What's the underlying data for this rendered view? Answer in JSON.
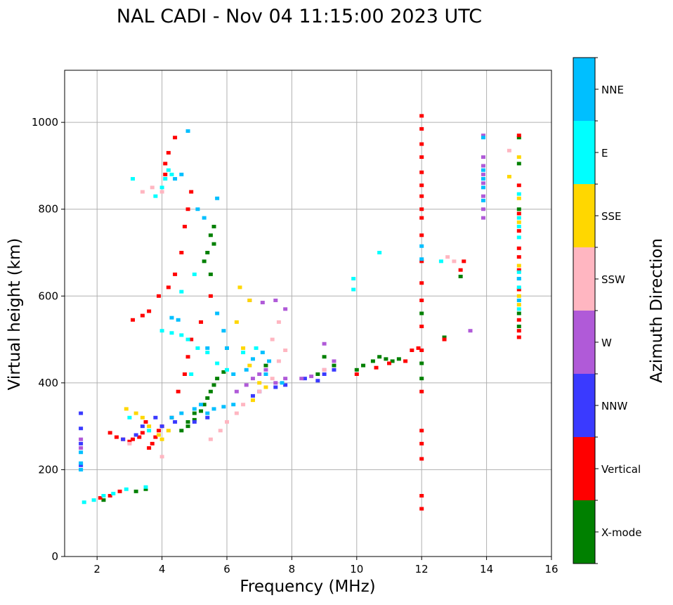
{
  "chart_data": {
    "type": "scatter",
    "title": "NAL CADI - Nov 04 11:15:00 2023 UTC",
    "xlabel": "Frequency (MHz)",
    "ylabel": "Virtual height (km)",
    "xlim": [
      1,
      16
    ],
    "ylim": [
      0,
      1120
    ],
    "xticks": [
      2,
      4,
      6,
      8,
      10,
      12,
      14,
      16
    ],
    "yticks": [
      0,
      200,
      400,
      600,
      800,
      1000
    ],
    "grid": true,
    "colorbar": {
      "label": "Azimuth Direction",
      "categories": [
        {
          "name": "X-mode",
          "color": "#008000"
        },
        {
          "name": "Vertical",
          "color": "#ff0000"
        },
        {
          "name": "NNW",
          "color": "#3a3aff"
        },
        {
          "name": "W",
          "color": "#b05ad8"
        },
        {
          "name": "SSW",
          "color": "#ffb6c1"
        },
        {
          "name": "SSE",
          "color": "#ffd700"
        },
        {
          "name": "E",
          "color": "#00ffff"
        },
        {
          "name": "NNE",
          "color": "#00bfff"
        }
      ]
    },
    "series": [
      {
        "name": "X-mode",
        "points": [
          [
            4.6,
            290
          ],
          [
            4.8,
            300
          ],
          [
            5.0,
            315
          ],
          [
            5.2,
            335
          ],
          [
            5.3,
            350
          ],
          [
            5.4,
            365
          ],
          [
            5.5,
            380
          ],
          [
            5.6,
            395
          ],
          [
            5.7,
            410
          ],
          [
            5.9,
            425
          ],
          [
            5.3,
            680
          ],
          [
            5.4,
            700
          ],
          [
            5.5,
            740
          ],
          [
            5.6,
            760
          ],
          [
            2.2,
            130
          ],
          [
            3.2,
            150
          ],
          [
            3.5,
            155
          ],
          [
            5.0,
            330
          ],
          [
            4.8,
            310
          ],
          [
            7.2,
            440
          ],
          [
            8.8,
            420
          ],
          [
            9.0,
            460
          ],
          [
            9.3,
            440
          ],
          [
            10.0,
            430
          ],
          [
            10.2,
            440
          ],
          [
            10.5,
            450
          ],
          [
            10.7,
            460
          ],
          [
            10.9,
            455
          ],
          [
            11.1,
            450
          ],
          [
            11.3,
            455
          ],
          [
            12.0,
            410
          ],
          [
            12.0,
            445
          ],
          [
            12.0,
            560
          ],
          [
            13.2,
            645
          ],
          [
            12.7,
            505
          ],
          [
            15.0,
            530
          ],
          [
            15.0,
            560
          ],
          [
            15.0,
            800
          ],
          [
            15.0,
            905
          ],
          [
            15.0,
            965
          ],
          [
            5.6,
            720
          ],
          [
            5.5,
            650
          ],
          [
            6.0,
            480
          ]
        ]
      },
      {
        "name": "Vertical",
        "points": [
          [
            2.4,
            285
          ],
          [
            2.6,
            275
          ],
          [
            2.8,
            270
          ],
          [
            3.0,
            265
          ],
          [
            3.1,
            270
          ],
          [
            3.3,
            275
          ],
          [
            3.4,
            285
          ],
          [
            3.6,
            250
          ],
          [
            3.7,
            260
          ],
          [
            3.8,
            275
          ],
          [
            3.5,
            310
          ],
          [
            3.9,
            290
          ],
          [
            3.1,
            545
          ],
          [
            3.4,
            555
          ],
          [
            3.6,
            565
          ],
          [
            3.9,
            600
          ],
          [
            4.2,
            620
          ],
          [
            4.4,
            650
          ],
          [
            4.6,
            700
          ],
          [
            4.7,
            760
          ],
          [
            4.8,
            800
          ],
          [
            4.9,
            840
          ],
          [
            4.1,
            880
          ],
          [
            4.1,
            905
          ],
          [
            4.2,
            930
          ],
          [
            4.4,
            965
          ],
          [
            4.0,
            300
          ],
          [
            4.3,
            320
          ],
          [
            4.5,
            380
          ],
          [
            4.7,
            420
          ],
          [
            4.8,
            460
          ],
          [
            4.9,
            500
          ],
          [
            5.2,
            540
          ],
          [
            5.5,
            600
          ],
          [
            2.1,
            135
          ],
          [
            2.4,
            140
          ],
          [
            2.7,
            150
          ],
          [
            10.0,
            420
          ],
          [
            10.6,
            435
          ],
          [
            11.0,
            445
          ],
          [
            11.5,
            450
          ],
          [
            12.0,
            110
          ],
          [
            12.0,
            140
          ],
          [
            12.0,
            225
          ],
          [
            12.0,
            260
          ],
          [
            12.0,
            290
          ],
          [
            12.0,
            380
          ],
          [
            12.0,
            475
          ],
          [
            12.0,
            530
          ],
          [
            12.0,
            590
          ],
          [
            12.0,
            630
          ],
          [
            12.0,
            680
          ],
          [
            12.0,
            740
          ],
          [
            12.0,
            780
          ],
          [
            12.0,
            800
          ],
          [
            12.0,
            830
          ],
          [
            12.0,
            855
          ],
          [
            12.0,
            885
          ],
          [
            12.0,
            920
          ],
          [
            12.0,
            950
          ],
          [
            12.0,
            985
          ],
          [
            12.0,
            1015
          ],
          [
            12.7,
            500
          ],
          [
            13.2,
            660
          ],
          [
            13.3,
            680
          ],
          [
            15.0,
            505
          ],
          [
            15.0,
            520
          ],
          [
            15.0,
            545
          ],
          [
            15.0,
            615
          ],
          [
            15.0,
            660
          ],
          [
            15.0,
            690
          ],
          [
            15.0,
            710
          ],
          [
            15.0,
            750
          ],
          [
            15.0,
            790
          ],
          [
            15.0,
            855
          ],
          [
            15.0,
            970
          ],
          [
            11.9,
            480
          ],
          [
            11.7,
            475
          ]
        ]
      },
      {
        "name": "NNW",
        "points": [
          [
            1.5,
            210
          ],
          [
            1.5,
            260
          ],
          [
            1.5,
            295
          ],
          [
            1.5,
            330
          ],
          [
            2.8,
            270
          ],
          [
            3.2,
            280
          ],
          [
            3.4,
            300
          ],
          [
            4.0,
            300
          ],
          [
            4.4,
            310
          ],
          [
            5.0,
            310
          ],
          [
            5.4,
            320
          ],
          [
            6.8,
            370
          ],
          [
            7.0,
            380
          ],
          [
            7.5,
            390
          ],
          [
            7.8,
            395
          ],
          [
            8.4,
            410
          ],
          [
            8.8,
            405
          ],
          [
            9.0,
            420
          ],
          [
            9.3,
            430
          ],
          [
            3.8,
            320
          ]
        ]
      },
      {
        "name": "W",
        "points": [
          [
            1.5,
            250
          ],
          [
            1.5,
            270
          ],
          [
            6.3,
            380
          ],
          [
            6.6,
            395
          ],
          [
            6.8,
            410
          ],
          [
            7.0,
            420
          ],
          [
            7.2,
            430
          ],
          [
            7.5,
            400
          ],
          [
            7.8,
            410
          ],
          [
            7.1,
            585
          ],
          [
            7.5,
            590
          ],
          [
            7.8,
            570
          ],
          [
            8.3,
            410
          ],
          [
            8.6,
            415
          ],
          [
            9.0,
            430
          ],
          [
            9.3,
            450
          ],
          [
            9.0,
            490
          ],
          [
            6.7,
            590
          ],
          [
            13.9,
            780
          ],
          [
            13.9,
            800
          ],
          [
            13.9,
            830
          ],
          [
            13.9,
            860
          ],
          [
            13.9,
            880
          ],
          [
            13.9,
            900
          ],
          [
            13.9,
            920
          ],
          [
            13.9,
            970
          ],
          [
            13.5,
            520
          ]
        ]
      },
      {
        "name": "SSW",
        "points": [
          [
            5.5,
            270
          ],
          [
            5.8,
            290
          ],
          [
            6.0,
            310
          ],
          [
            6.3,
            330
          ],
          [
            6.5,
            350
          ],
          [
            6.8,
            360
          ],
          [
            7.0,
            380
          ],
          [
            7.4,
            410
          ],
          [
            7.6,
            450
          ],
          [
            7.8,
            475
          ],
          [
            7.6,
            540
          ],
          [
            3.4,
            840
          ],
          [
            3.7,
            850
          ],
          [
            4.0,
            840
          ],
          [
            4.0,
            230
          ],
          [
            3.0,
            260
          ],
          [
            12.8,
            690
          ],
          [
            13.0,
            680
          ],
          [
            14.7,
            935
          ],
          [
            9.0,
            430
          ],
          [
            7.4,
            500
          ]
        ]
      },
      {
        "name": "SSE",
        "points": [
          [
            2.9,
            340
          ],
          [
            3.2,
            330
          ],
          [
            3.4,
            320
          ],
          [
            3.6,
            300
          ],
          [
            3.9,
            280
          ],
          [
            4.2,
            290
          ],
          [
            4.0,
            270
          ],
          [
            6.3,
            540
          ],
          [
            6.5,
            480
          ],
          [
            6.7,
            440
          ],
          [
            7.0,
            400
          ],
          [
            7.2,
            390
          ],
          [
            6.8,
            360
          ],
          [
            6.4,
            620
          ],
          [
            6.7,
            590
          ],
          [
            14.7,
            875
          ],
          [
            15.0,
            920
          ],
          [
            15.0,
            825
          ],
          [
            15.0,
            770
          ],
          [
            15.0,
            670
          ],
          [
            15.0,
            600
          ],
          [
            15.0,
            580
          ]
        ]
      },
      {
        "name": "E",
        "points": [
          [
            1.6,
            125
          ],
          [
            1.9,
            130
          ],
          [
            2.2,
            140
          ],
          [
            2.5,
            145
          ],
          [
            2.9,
            155
          ],
          [
            3.5,
            160
          ],
          [
            3.8,
            830
          ],
          [
            4.0,
            850
          ],
          [
            4.1,
            870
          ],
          [
            4.2,
            890
          ],
          [
            4.3,
            880
          ],
          [
            4.0,
            520
          ],
          [
            4.3,
            515
          ],
          [
            4.6,
            510
          ],
          [
            4.8,
            500
          ],
          [
            5.1,
            480
          ],
          [
            5.4,
            470
          ],
          [
            5.7,
            445
          ],
          [
            6.0,
            430
          ],
          [
            6.5,
            470
          ],
          [
            6.9,
            480
          ],
          [
            4.6,
            610
          ],
          [
            5.0,
            650
          ],
          [
            9.9,
            615
          ],
          [
            9.9,
            640
          ],
          [
            10.7,
            700
          ],
          [
            12.6,
            680
          ],
          [
            15.0,
            570
          ],
          [
            15.0,
            620
          ],
          [
            15.0,
            640
          ],
          [
            15.0,
            655
          ],
          [
            15.0,
            735
          ],
          [
            15.0,
            760
          ],
          [
            15.0,
            780
          ],
          [
            15.0,
            835
          ],
          [
            3.1,
            870
          ],
          [
            3.6,
            290
          ],
          [
            3.0,
            320
          ],
          [
            4.9,
            420
          ]
        ]
      },
      {
        "name": "NNE",
        "points": [
          [
            1.5,
            200
          ],
          [
            1.5,
            215
          ],
          [
            1.5,
            240
          ],
          [
            4.3,
            320
          ],
          [
            4.6,
            330
          ],
          [
            5.0,
            340
          ],
          [
            5.2,
            350
          ],
          [
            5.4,
            330
          ],
          [
            5.6,
            340
          ],
          [
            5.9,
            345
          ],
          [
            6.2,
            350
          ],
          [
            6.6,
            430
          ],
          [
            6.8,
            455
          ],
          [
            7.1,
            470
          ],
          [
            7.3,
            450
          ],
          [
            5.4,
            480
          ],
          [
            5.7,
            560
          ],
          [
            5.9,
            520
          ],
          [
            6.0,
            480
          ],
          [
            6.2,
            420
          ],
          [
            4.3,
            550
          ],
          [
            4.5,
            545
          ],
          [
            13.9,
            820
          ],
          [
            13.9,
            850
          ],
          [
            13.9,
            870
          ],
          [
            13.9,
            890
          ],
          [
            13.9,
            965
          ],
          [
            15.0,
            590
          ],
          [
            15.0,
            640
          ],
          [
            12.0,
            715
          ],
          [
            12.0,
            685
          ],
          [
            4.6,
            880
          ],
          [
            4.4,
            870
          ],
          [
            5.1,
            800
          ],
          [
            5.3,
            780
          ],
          [
            5.7,
            825
          ],
          [
            4.8,
            980
          ],
          [
            7.2,
            420
          ],
          [
            7.7,
            400
          ]
        ]
      }
    ]
  }
}
